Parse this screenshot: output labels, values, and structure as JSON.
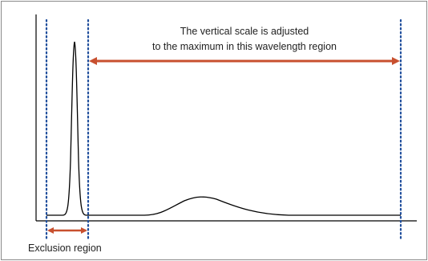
{
  "annotation": {
    "line1": "The vertical scale is adjusted",
    "line2": "to the maximum in this wavelength region"
  },
  "exclusion_label": "Exclusion region",
  "colors": {
    "frame": "#8a8a8a",
    "axis": "#000000",
    "curve": "#000000",
    "arrow": "#c8502f",
    "dotted_marker": "#1f4e9c",
    "text": "#222222"
  }
}
